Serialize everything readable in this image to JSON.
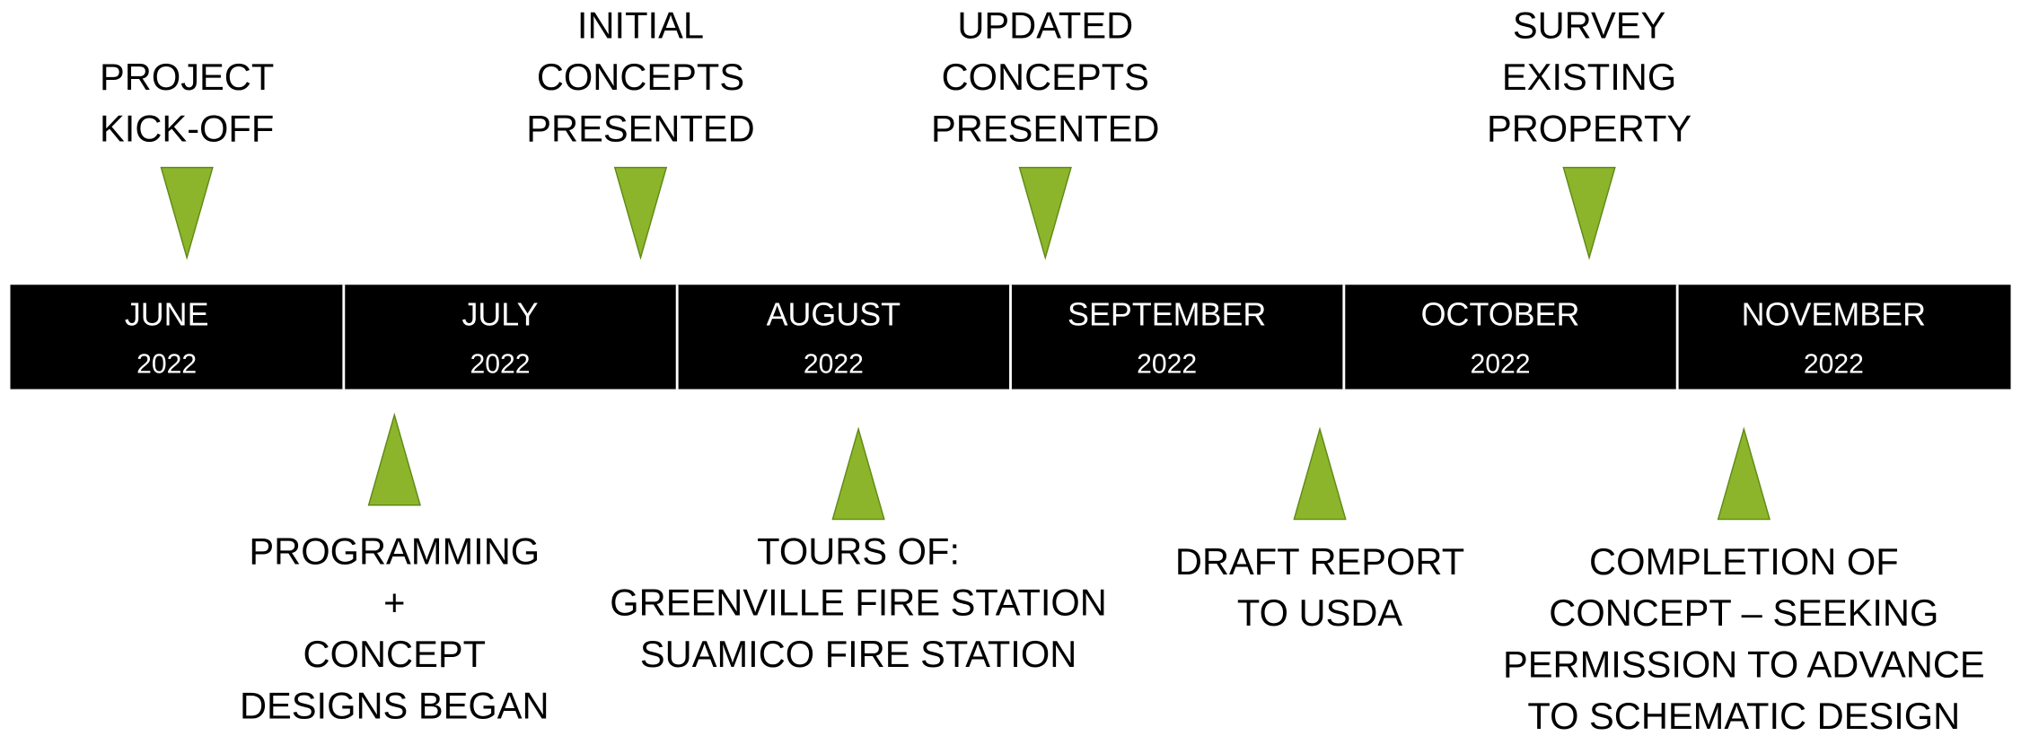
{
  "months": [
    {
      "month": "JUNE",
      "year": "2022"
    },
    {
      "month": "JULY",
      "year": "2022"
    },
    {
      "month": "AUGUST",
      "year": "2022"
    },
    {
      "month": "SEPTEMBER",
      "year": "2022"
    },
    {
      "month": "OCTOBER",
      "year": "2022"
    },
    {
      "month": "NOVEMBER",
      "year": "2022"
    }
  ],
  "events": {
    "above": [
      {
        "lines": [
          "PROJECT",
          "KICK-OFF"
        ]
      },
      {
        "lines": [
          "INITIAL",
          "CONCEPTS",
          "PRESENTED"
        ]
      },
      {
        "lines": [
          "UPDATED",
          "CONCEPTS",
          "PRESENTED"
        ]
      },
      {
        "lines": [
          "SURVEY",
          "EXISTING",
          "PROPERTY"
        ]
      }
    ],
    "below": [
      {
        "lines": [
          "PROGRAMMING",
          "+",
          "CONCEPT",
          "DESIGNS BEGAN"
        ]
      },
      {
        "lines": [
          "TOURS OF:",
          "GREENVILLE FIRE STATION",
          "SUAMICO FIRE STATION"
        ]
      },
      {
        "lines": [
          "DRAFT REPORT",
          "TO USDA"
        ]
      },
      {
        "lines": [
          "COMPLETION OF",
          "CONCEPT – SEEKING",
          "PERMISSION TO ADVANCE",
          "TO SCHEMATIC DESIGN"
        ]
      }
    ]
  }
}
